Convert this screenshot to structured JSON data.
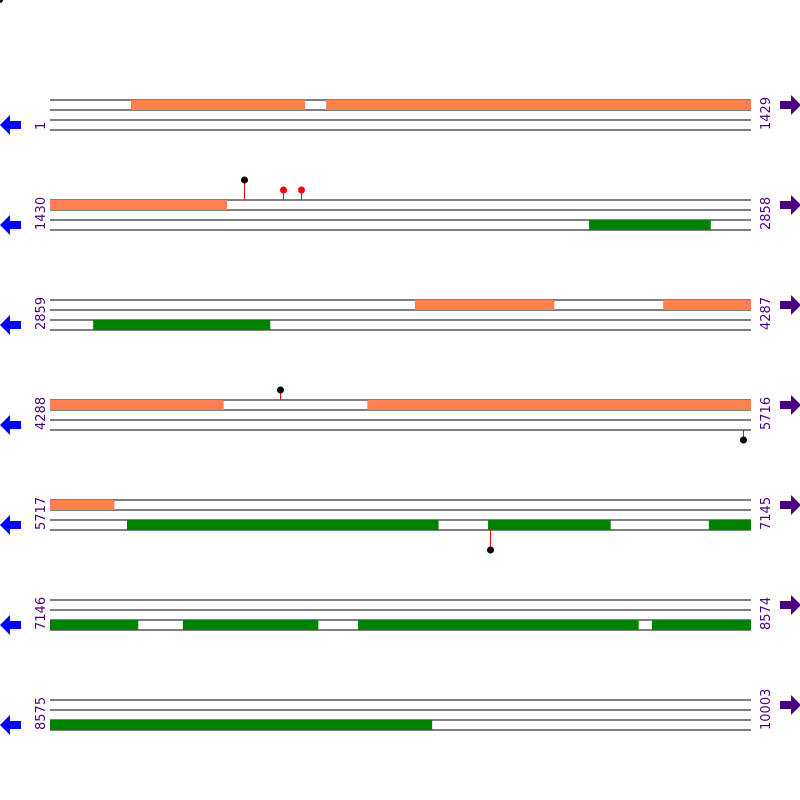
{
  "colors": {
    "forward_feature": "#FF7F50",
    "reverse_feature": "#008000",
    "pin_black": "#000000",
    "pin_red": "#FF0000",
    "stem": "#FF0000",
    "left_arrow": "#0000FF",
    "right_arrow": "#4B0082",
    "label": "#4B0082",
    "track_line": "#000000"
  },
  "icons": {
    "left": "blue-left-arrow-icon",
    "right": "purple-right-arrow-icon"
  },
  "rows": [
    {
      "start_label": "1",
      "end_label": "1429",
      "start": 1,
      "end": 1429,
      "forward": [
        [
          166,
          520
        ],
        [
          564,
          1429
        ]
      ],
      "reverse": [],
      "pins": []
    },
    {
      "start_label": "1430",
      "end_label": "2858",
      "start": 1430,
      "end": 2858,
      "forward": [
        [
          1430,
          1790
        ]
      ],
      "reverse": [
        [
          2529,
          2776
        ]
      ],
      "pins": [
        {
          "pos": 1826,
          "strand": "top",
          "color": "black",
          "height": "tall"
        },
        {
          "pos": 1905,
          "strand": "top",
          "color": "red",
          "height": "short"
        },
        {
          "pos": 1941,
          "strand": "top",
          "color": "red",
          "height": "short"
        }
      ]
    },
    {
      "start_label": "2859",
      "end_label": "4287",
      "start": 2859,
      "end": 4287,
      "forward": [
        [
          3603,
          3886
        ],
        [
          4109,
          4287
        ]
      ],
      "reverse": [
        [
          2947,
          3307
        ]
      ],
      "pins": []
    },
    {
      "start_label": "4288",
      "end_label": "5716",
      "start": 4288,
      "end": 5716,
      "forward": [
        [
          4288,
          4641
        ],
        [
          4935,
          5716
        ]
      ],
      "reverse": [],
      "pins": [
        {
          "pos": 4756,
          "strand": "top",
          "color": "black",
          "height": "short"
        },
        {
          "pos": 5700,
          "strand": "bottom",
          "color": "black",
          "height": "short"
        }
      ]
    },
    {
      "start_label": "5717",
      "end_label": "7145",
      "start": 5717,
      "end": 7145,
      "forward": [
        [
          5717,
          5847
        ]
      ],
      "reverse": [
        [
          5874,
          6508
        ],
        [
          6610,
          6859
        ],
        [
          7060,
          7145
        ]
      ],
      "pins": [
        {
          "pos": 6614,
          "strand": "bottom",
          "color": "black",
          "height": "tall"
        }
      ]
    },
    {
      "start_label": "7146",
      "end_label": "8574",
      "start": 7146,
      "end": 8574,
      "forward": [],
      "reverse": [
        [
          7146,
          7325
        ],
        [
          7417,
          7692
        ],
        [
          7774,
          8345
        ],
        [
          8373,
          8574
        ]
      ],
      "pins": []
    },
    {
      "start_label": "8575",
      "end_label": "10003",
      "start": 8575,
      "end": 10003,
      "forward": [],
      "reverse": [
        [
          8575,
          9353
        ]
      ],
      "pins": []
    }
  ]
}
